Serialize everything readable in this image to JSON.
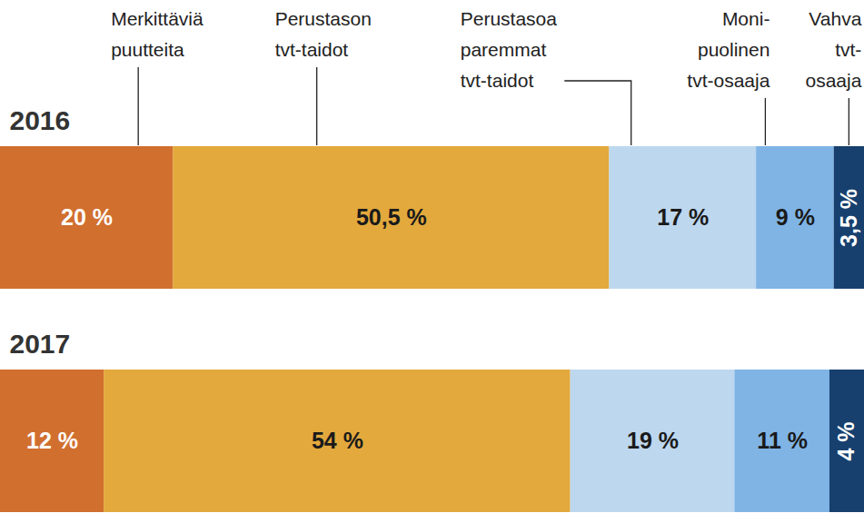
{
  "chart_data": {
    "type": "bar",
    "orientation": "horizontal",
    "stacked": true,
    "data_labels": true,
    "tick_labels": "y",
    "categories": [
      "2016",
      "2017"
    ],
    "xlim": [
      0,
      100
    ],
    "series": [
      {
        "name": "Merkittäviä\npuutteita",
        "color": "#D16F2F",
        "values": [
          20,
          12
        ],
        "value_labels": [
          "20 %",
          "12 %"
        ]
      },
      {
        "name": "Perustason\ntvt-taidot",
        "color": "#E3A93D",
        "values": [
          50.5,
          54
        ],
        "value_labels": [
          "50,5 %",
          "54 %"
        ]
      },
      {
        "name": "Perustasoa\nparemmat\ntvt-taidot",
        "color": "#BDD7EE",
        "values": [
          17,
          19
        ],
        "value_labels": [
          "17 %",
          "19 %"
        ]
      },
      {
        "name": "Moni-\npuolinen\ntvt-osaaja",
        "color": "#7FB4E5",
        "values": [
          9,
          11
        ],
        "value_labels": [
          "9 %",
          "11 %"
        ]
      },
      {
        "name": "Vahva\ntvt-\nosaaja",
        "color": "#17406E",
        "values": [
          3.5,
          4
        ],
        "value_labels": [
          "3,5 %",
          "4 %"
        ]
      }
    ]
  }
}
